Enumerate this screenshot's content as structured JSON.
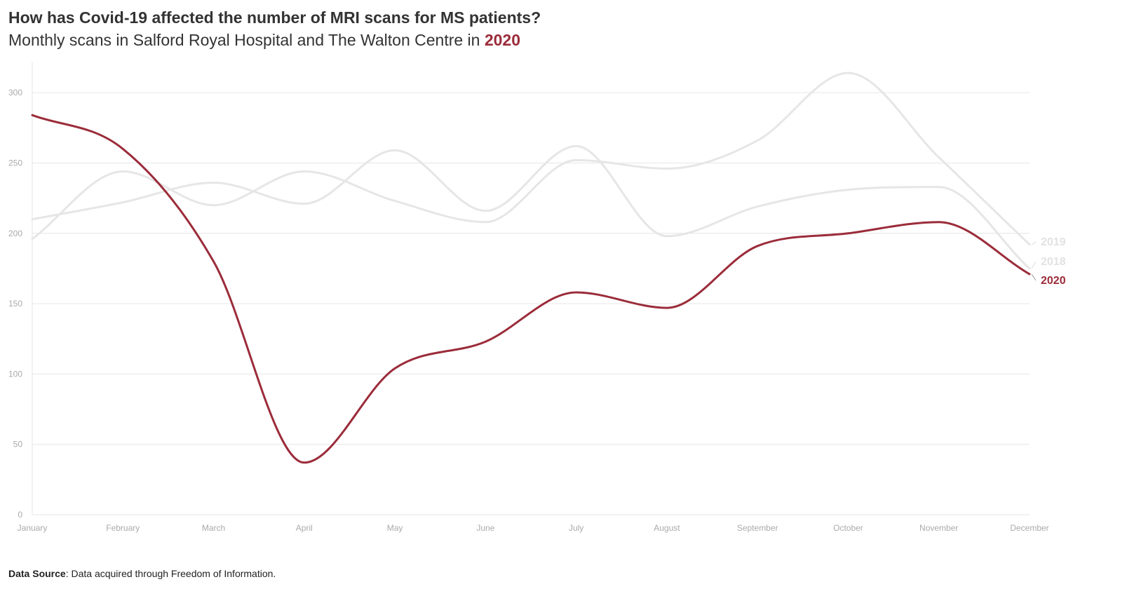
{
  "header": {
    "title": "How has Covid-19 affected the number of MRI scans for MS patients?",
    "subtitle_prefix": "Monthly scans in Salford Royal Hospital and The Walton Centre in",
    "subtitle_highlight": "2020"
  },
  "footer": {
    "source_label": "Data Source",
    "source_text": ": Data acquired through Freedom of Information."
  },
  "chart_data": {
    "type": "line",
    "title": "How has Covid-19 affected the number of MRI scans for MS patients?",
    "subtitle": "Monthly scans in Salford Royal Hospital and The Walton Centre in 2020",
    "xlabel": "",
    "ylabel": "",
    "ylim": [
      0,
      320
    ],
    "yticks": [
      0,
      50,
      100,
      150,
      200,
      250,
      300
    ],
    "grid": true,
    "categories": [
      "January",
      "February",
      "March",
      "April",
      "May",
      "June",
      "July",
      "August",
      "September",
      "October",
      "November",
      "December"
    ],
    "series": [
      {
        "name": "2019",
        "color": "#e6e6e6",
        "values": [
          196,
          244,
          220,
          244,
          223,
          208,
          252,
          246,
          266,
          314,
          254,
          192
        ]
      },
      {
        "name": "2018",
        "color": "#e6e6e6",
        "values": [
          210,
          222,
          236,
          221,
          259,
          216,
          262,
          198,
          219,
          231,
          233,
          175
        ]
      },
      {
        "name": "2020",
        "color": "#9b2c3a",
        "values": [
          284,
          260,
          180,
          37,
          104,
          123,
          158,
          147,
          191,
          200,
          208,
          171
        ]
      }
    ],
    "labels_placement": "right"
  },
  "colors": {
    "highlight": "#9b2c3a",
    "muted": "#e6e6e6",
    "grid": "#e6e6e6",
    "tick": "#aaaaaa"
  }
}
